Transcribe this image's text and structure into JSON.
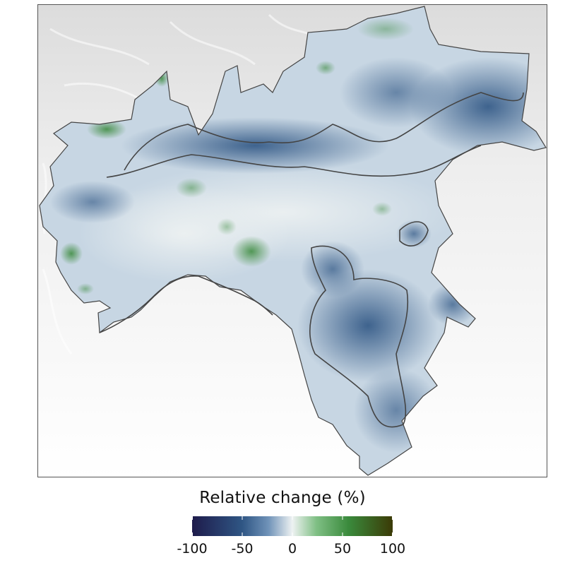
{
  "legend": {
    "title": "Relative change (%)",
    "ticks": [
      {
        "value": -100,
        "label": "-100"
      },
      {
        "value": -50,
        "label": "-50"
      },
      {
        "value": 0,
        "label": "0"
      },
      {
        "value": 50,
        "label": "50"
      },
      {
        "value": 100,
        "label": "100"
      }
    ],
    "range": [
      -100,
      100
    ],
    "colors": {
      "min": "#1e1b4b",
      "strong_negative": "#2f5684",
      "negative": "#6f92b8",
      "neutral": "#eef2f2",
      "positive": "#7fbf84",
      "strong_positive": "#3a8a3c",
      "max": "#3b3a06"
    }
  },
  "map": {
    "background_relief": "grey hillshade",
    "outline_color": "#444444"
  }
}
